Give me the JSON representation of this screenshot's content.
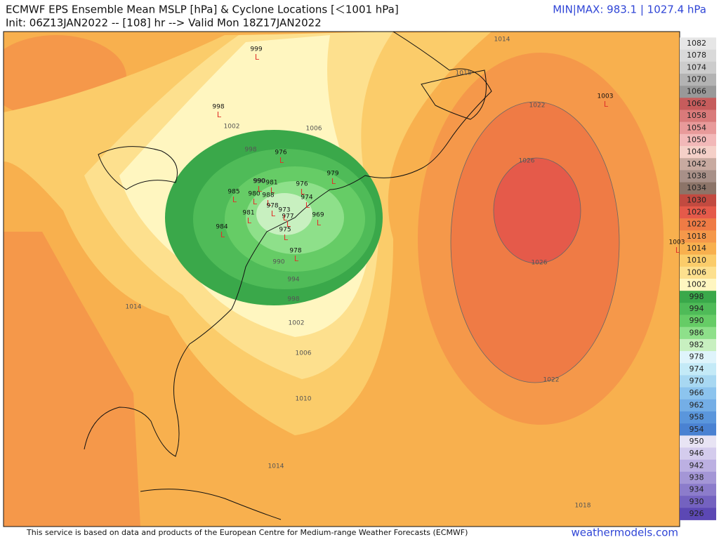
{
  "header": {
    "title": "ECMWF EPS Ensemble Mean MSLP [hPa] & Cyclone Locations [＜1001 hPa]",
    "subtitle": "Init: 06Z13JAN2022 -- [108] hr --> Valid Mon 18Z17JAN2022",
    "minmax": "MIN|MAX: 983.1 | 1027.4 hPa"
  },
  "footer": {
    "credit": "This service is based on data and products of the European Centre for Medium-range Weather Forecasts (ECMWF)",
    "site": "weathermodels.com"
  },
  "colorbar": {
    "levels": [
      1082,
      1078,
      1074,
      1070,
      1066,
      1062,
      1058,
      1054,
      1050,
      1046,
      1042,
      1038,
      1034,
      1030,
      1026,
      1022,
      1018,
      1014,
      1010,
      1006,
      1002,
      998,
      994,
      990,
      986,
      982,
      978,
      974,
      970,
      966,
      962,
      958,
      954,
      950,
      946,
      942,
      938,
      934,
      930,
      926
    ],
    "colors": [
      "#e6e6e6",
      "#d9d9d9",
      "#cccccc",
      "#b3b3b3",
      "#999999",
      "#c65c5c",
      "#d97a7a",
      "#e89a9a",
      "#f2b8b8",
      "#f5d0c8",
      "#c8aaa0",
      "#a89088",
      "#8c7468",
      "#c24a40",
      "#e55a4a",
      "#ef7b45",
      "#f5984a",
      "#f8b04e",
      "#fbcc6a",
      "#fde08e",
      "#fff6c0",
      "#3aa84a",
      "#4fbb58",
      "#66cc66",
      "#8ee08a",
      "#c8f0c0",
      "#dff4fb",
      "#c4eaf7",
      "#a8d8f2",
      "#8cc4ee",
      "#74aee6",
      "#5a96dc",
      "#4a82d2",
      "#e8e4f4",
      "#d4cced",
      "#bcb0e2",
      "#a496d6",
      "#8c7ccb",
      "#7462c0",
      "#5c48b4"
    ]
  },
  "contour_labels": [
    1014,
    1018,
    1018,
    1022,
    1022,
    1026,
    1026,
    1014,
    1014,
    1010,
    1006,
    1006,
    1002,
    1002,
    998,
    998,
    994,
    990,
    990
  ],
  "cyclone_symbol": "L",
  "cyclones": [
    999,
    998,
    1003,
    1003,
    979,
    969,
    978,
    984,
    985,
    976,
    981,
    980,
    981,
    988,
    978,
    990,
    974,
    975,
    977,
    973,
    976
  ]
}
